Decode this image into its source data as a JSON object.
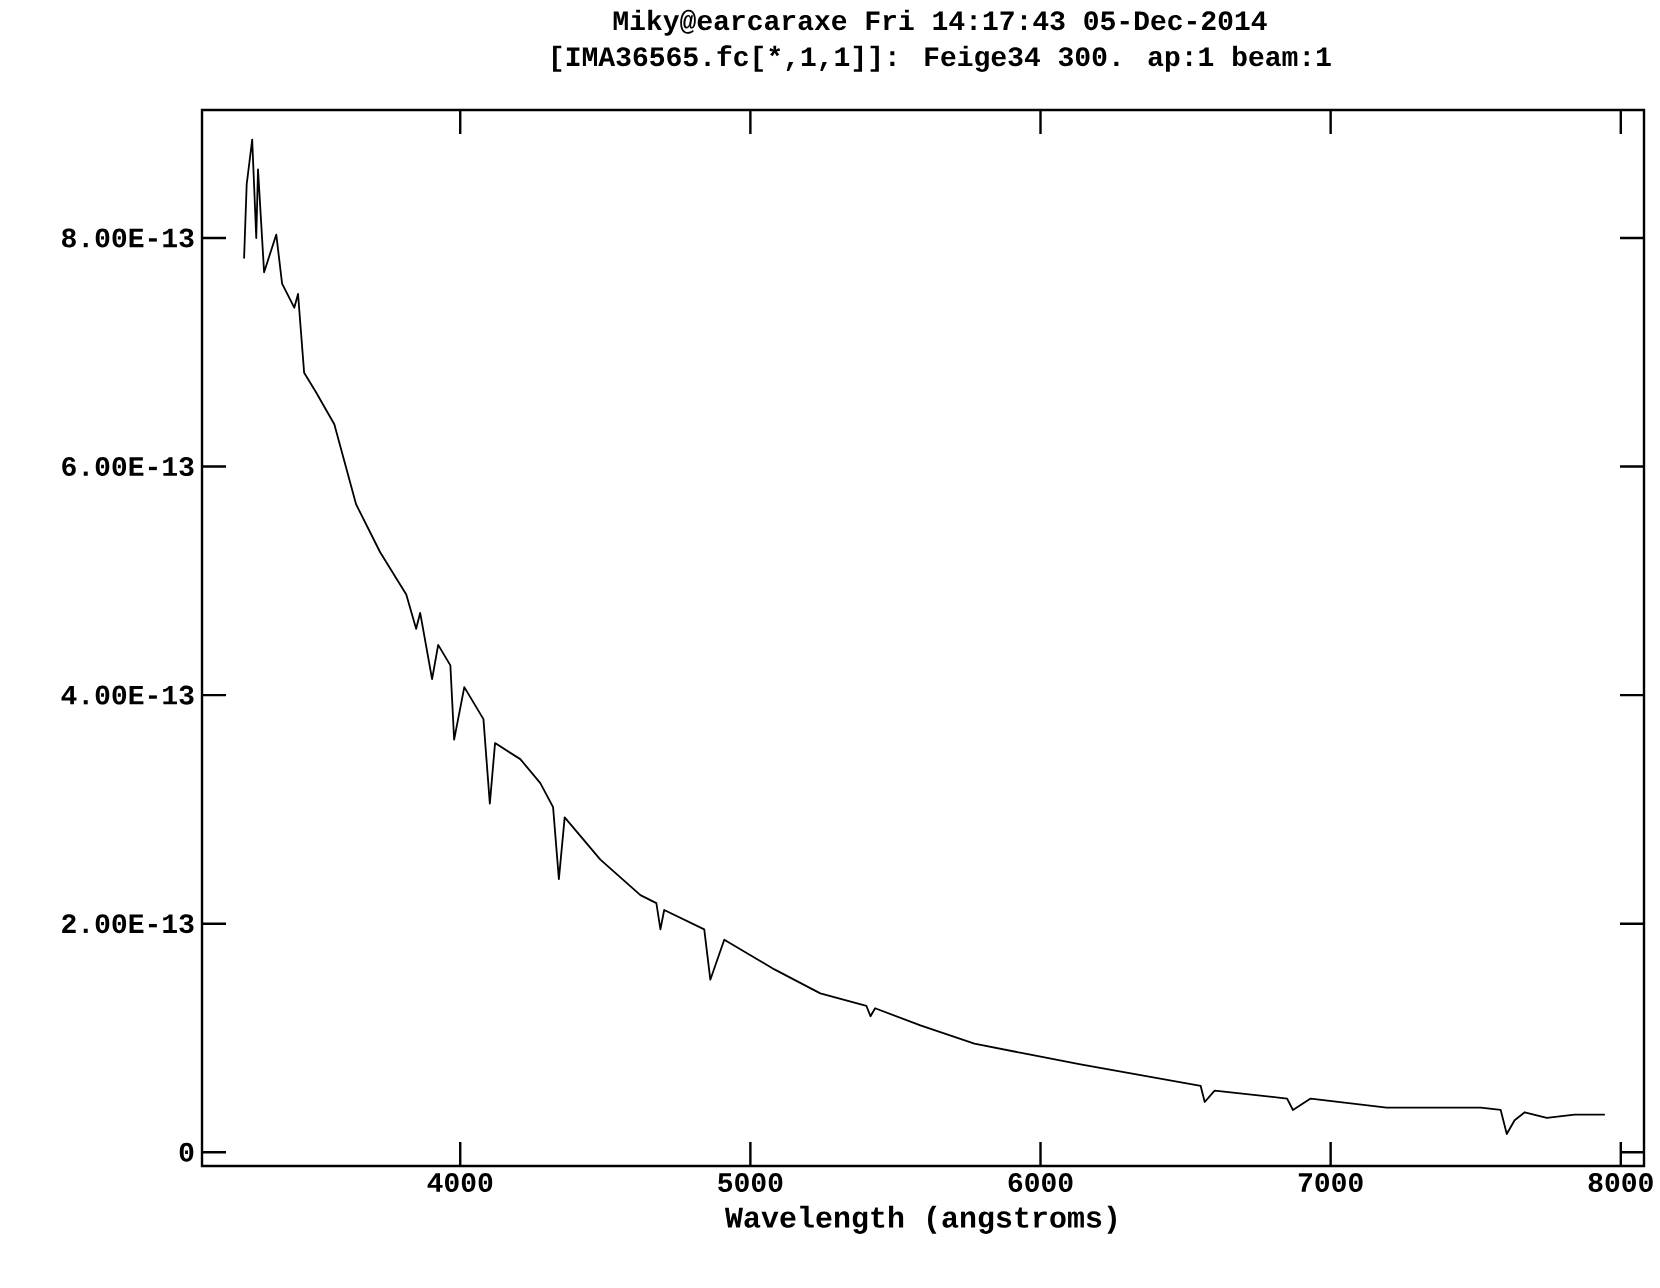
{
  "chart_data": {
    "type": "line",
    "title": "Miky@earcaraxe Fri 14:17:43 05-Dec-2014",
    "subtitle": "[IMA36565.fc[*,1,1]]: Feige34 300. ap:1 beam:1",
    "xlabel": "Wavelength (angstroms)",
    "xlim": [
      3110,
      8080
    ],
    "ylim": [
      -1.2e-14,
      9.12e-13
    ],
    "xticks": [
      4000,
      5000,
      6000,
      7000,
      8000
    ],
    "yticks": [
      {
        "value": 0,
        "label": "0"
      },
      {
        "value": 2e-13,
        "label": "2.00E-13"
      },
      {
        "value": 4e-13,
        "label": "4.00E-13"
      },
      {
        "value": 6e-13,
        "label": "6.00E-13"
      },
      {
        "value": 8e-13,
        "label": "8.00E-13"
      }
    ],
    "marker": "none",
    "line_style": "solid",
    "series": [
      {
        "color": "#000000",
        "x": [
          3255,
          3264,
          3283,
          3297,
          3303,
          3324,
          3366,
          3386,
          3428,
          3441,
          3462,
          3503,
          3566,
          3641,
          3724,
          3814,
          3848,
          3862,
          3903,
          3924,
          3966,
          3979,
          4014,
          4080,
          4102,
          4120,
          4207,
          4276,
          4320,
          4340,
          4360,
          4483,
          4621,
          4676,
          4690,
          4703,
          4841,
          4862,
          4910,
          5083,
          5241,
          5400,
          5414,
          5430,
          5586,
          5772,
          5952,
          6138,
          6552,
          6566,
          6600,
          6850,
          6870,
          6931,
          7193,
          7517,
          7586,
          7607,
          7634,
          7669,
          7745,
          7841,
          7945
        ],
        "values": [
          7.82e-13,
          8.47e-13,
          8.86e-13,
          8e-13,
          8.6e-13,
          7.7e-13,
          8.03e-13,
          7.6e-13,
          7.39e-13,
          7.51e-13,
          6.82e-13,
          6.65e-13,
          6.37e-13,
          5.67e-13,
          5.25e-13,
          4.88e-13,
          4.58e-13,
          4.72e-13,
          4.14e-13,
          4.44e-13,
          4.26e-13,
          3.61e-13,
          4.07e-13,
          3.79e-13,
          3.05e-13,
          3.58e-13,
          3.44e-13,
          3.23e-13,
          3.02e-13,
          2.39e-13,
          2.93e-13,
          2.56e-13,
          2.25e-13,
          2.18e-13,
          1.95e-13,
          2.12e-13,
          1.95e-13,
          1.51e-13,
          1.86e-13,
          1.6e-13,
          1.39e-13,
          1.28e-13,
          1.19e-13,
          1.26e-13,
          1.11e-13,
          9.5e-14,
          8.6e-14,
          7.7e-14,
          5.8e-14,
          4.4e-14,
          5.4e-14,
          4.7e-14,
          3.7e-14,
          4.7e-14,
          3.9e-14,
          3.9e-14,
          3.7e-14,
          1.6e-14,
          2.8e-14,
          3.5e-14,
          3e-14,
          3.3e-14,
          3.3e-14
        ]
      }
    ]
  }
}
